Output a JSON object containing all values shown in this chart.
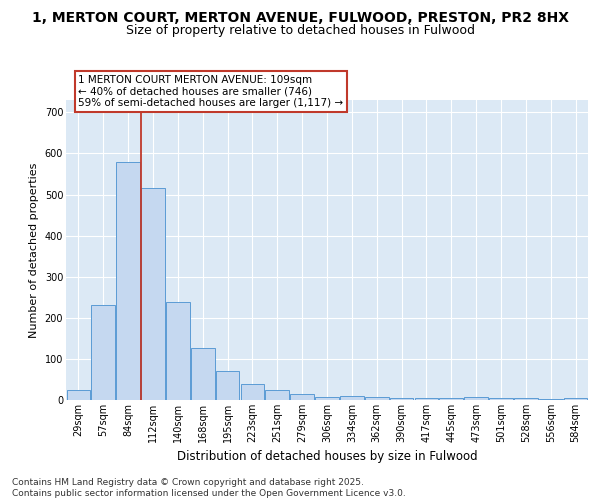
{
  "title_line1": "1, MERTON COURT, MERTON AVENUE, FULWOOD, PRESTON, PR2 8HX",
  "title_line2": "Size of property relative to detached houses in Fulwood",
  "xlabel": "Distribution of detached houses by size in Fulwood",
  "ylabel": "Number of detached properties",
  "categories": [
    "29sqm",
    "57sqm",
    "84sqm",
    "112sqm",
    "140sqm",
    "168sqm",
    "195sqm",
    "223sqm",
    "251sqm",
    "279sqm",
    "306sqm",
    "334sqm",
    "362sqm",
    "390sqm",
    "417sqm",
    "445sqm",
    "473sqm",
    "501sqm",
    "528sqm",
    "556sqm",
    "584sqm"
  ],
  "values": [
    25,
    232,
    580,
    515,
    238,
    127,
    70,
    40,
    25,
    14,
    8,
    10,
    8,
    5,
    5,
    5,
    8,
    5,
    5,
    2,
    5
  ],
  "bar_color": "#c5d8f0",
  "bar_edge_color": "#5b9bd5",
  "vline_color": "#c0392b",
  "annotation_text": "1 MERTON COURT MERTON AVENUE: 109sqm\n← 40% of detached houses are smaller (746)\n59% of semi-detached houses are larger (1,117) →",
  "annotation_box_color": "#ffffff",
  "annotation_box_edge_color": "#c0392b",
  "ylim": [
    0,
    730
  ],
  "yticks": [
    0,
    100,
    200,
    300,
    400,
    500,
    600,
    700
  ],
  "background_color": "#dce9f5",
  "grid_color": "#ffffff",
  "footer_text": "Contains HM Land Registry data © Crown copyright and database right 2025.\nContains public sector information licensed under the Open Government Licence v3.0.",
  "title_fontsize": 10,
  "subtitle_fontsize": 9,
  "axis_label_fontsize": 8,
  "tick_fontsize": 7,
  "annotation_fontsize": 7.5,
  "footer_fontsize": 6.5
}
